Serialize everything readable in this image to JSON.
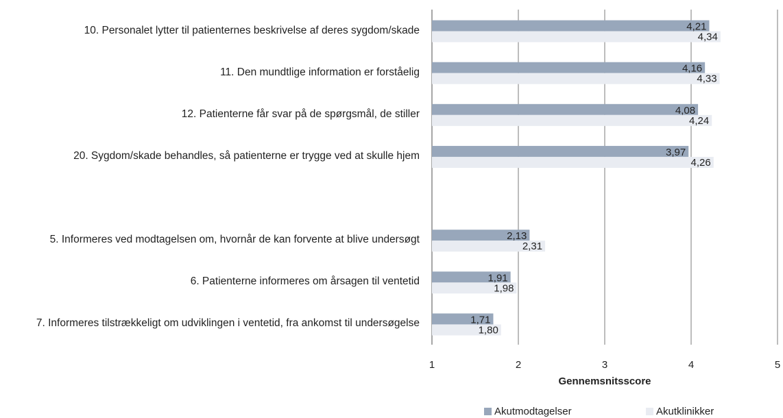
{
  "chart_data": {
    "type": "bar",
    "orientation": "horizontal",
    "categories": [
      "10. Personalet lytter til patienternes beskrivelse af deres sygdom/skade",
      "11. Den mundtlige information er forståelig",
      "12. Patienterne får svar på de spørgsmål, de stiller",
      "20. Sygdom/skade behandles, så patienterne er trygge ved at skulle hjem",
      null,
      "5. Informeres ved modtagelsen om, hvornår de kan forvente at blive undersøgt",
      "6. Patienterne informeres om årsagen til ventetid",
      "7.  Informeres tilstrækkeligt om udviklingen i ventetid, fra ankomst til undersøgelse"
    ],
    "series": [
      {
        "name": "Akutmodtagelser",
        "color": "#98a7bb",
        "values": [
          4.21,
          4.16,
          4.08,
          3.97,
          null,
          2.13,
          1.91,
          1.71
        ],
        "value_labels": [
          "4,21",
          "4,16",
          "4,08",
          "3,97",
          null,
          "2,13",
          "1,91",
          "1,71"
        ]
      },
      {
        "name": "Akutklinikker",
        "color": "#e9ecf2",
        "values": [
          4.34,
          4.33,
          4.24,
          4.26,
          null,
          2.31,
          1.98,
          1.8
        ],
        "value_labels": [
          "4,34",
          "4,33",
          "4,24",
          "4,26",
          null,
          "2,31",
          "1,98",
          "1,80"
        ]
      }
    ],
    "xlabel": "Gennemsnitsscore",
    "xlim": [
      1,
      5
    ],
    "xticks": [
      1,
      2,
      3,
      4,
      5
    ],
    "grid": true
  }
}
